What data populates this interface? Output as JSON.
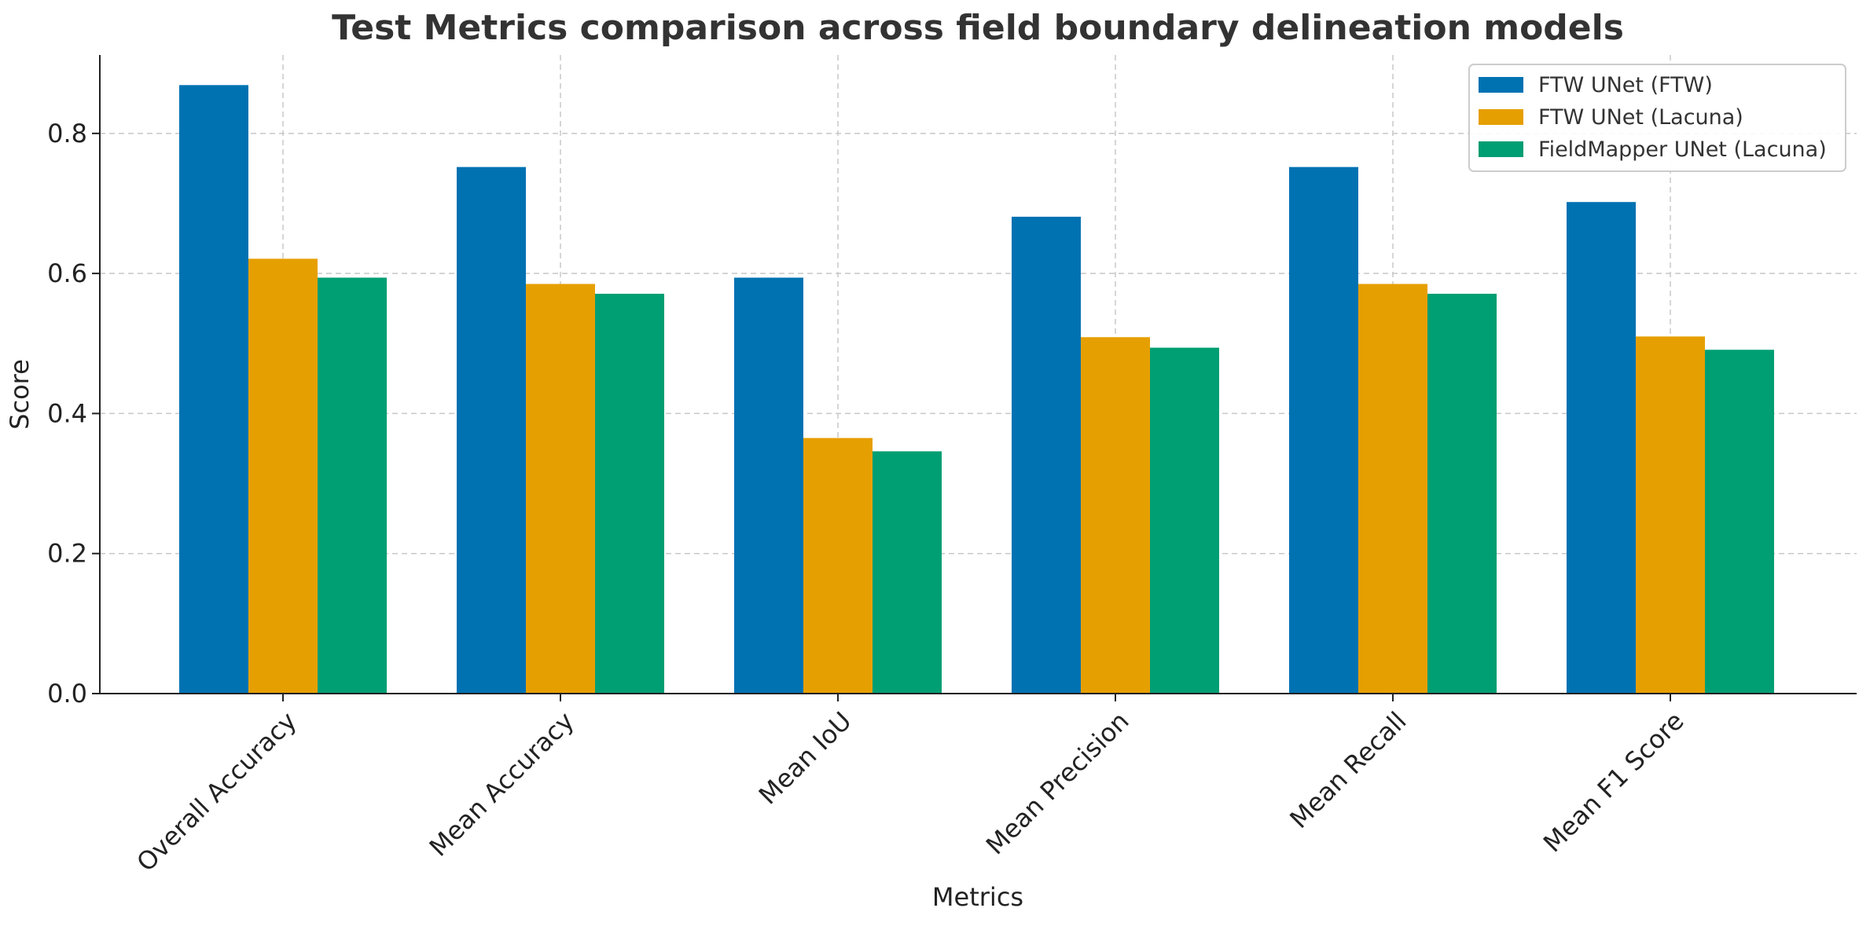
{
  "chart_data": {
    "type": "bar",
    "title": "Test Metrics comparison across field boundary delineation models",
    "xlabel": "Metrics",
    "ylabel": "Score",
    "categories": [
      "Overall Accuracy",
      "Mean Accuracy",
      "Mean IoU",
      "Mean Precision",
      "Mean Recall",
      "Mean F1 Score"
    ],
    "series": [
      {
        "name": "FTW UNet (FTW)",
        "color": "#0072B2",
        "values": [
          0.869,
          0.752,
          0.594,
          0.681,
          0.752,
          0.702
        ]
      },
      {
        "name": "FTW UNet (Lacuna)",
        "color": "#E69F00",
        "values": [
          0.621,
          0.585,
          0.365,
          0.509,
          0.585,
          0.51
        ]
      },
      {
        "name": "FieldMapper UNet (Lacuna)",
        "color": "#009E73",
        "values": [
          0.594,
          0.571,
          0.346,
          0.494,
          0.571,
          0.491
        ]
      }
    ],
    "ylim": [
      0,
      0.912
    ],
    "yticks": [
      0.0,
      0.2,
      0.4,
      0.6,
      0.8
    ],
    "ytick_labels": [
      "0.0",
      "0.2",
      "0.4",
      "0.6",
      "0.8"
    ],
    "grid": true,
    "legend_position": "top-right"
  }
}
